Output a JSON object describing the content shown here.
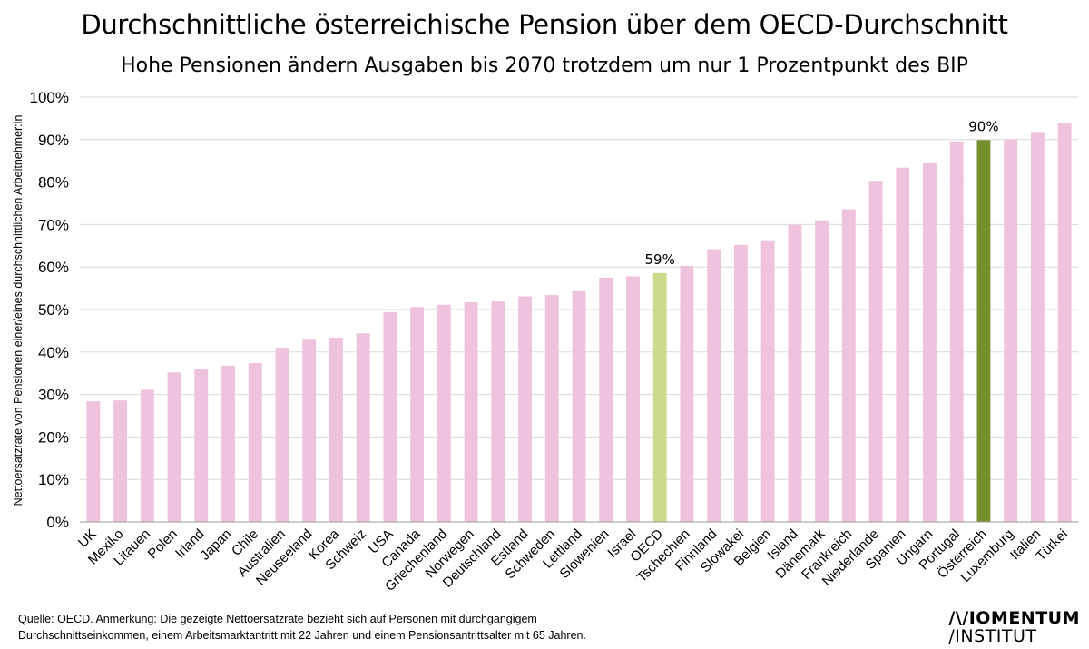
{
  "header": {
    "title": "Durchschnittliche österreichische Pension über dem OECD-Durchschnitt",
    "subtitle": "Hohe Pensionen ändern Ausgaben bis 2070 trotzdem um nur 1 Prozentpunkt des BIP"
  },
  "footer": {
    "source_line1": "Quelle: OECD. Anmerkung: Die gezeigte Nettoersatzrate bezieht sich auf Personen mit durchgängigem",
    "source_line2": "Durchschnittseinkommen, einem Arbeitsmarktantritt mit 22 Jahren und einem Pensionsantrittsalter mit 65 Jahren.",
    "logo_line1": "/\\/IOMENTUM",
    "logo_line2": "/INSTITUT"
  },
  "chart_data": {
    "type": "bar",
    "title": "Durchschnittliche österreichische Pension über dem OECD-Durchschnitt",
    "subtitle": "Hohe Pensionen ändern Ausgaben bis 2070 trotzdem um nur 1 Prozentpunkt des BIP",
    "ylabel": "Nettoersatzrate von Pensionen einer/eines durchschnittlichen Arbeitnehmer:in",
    "xlabel": "",
    "ylim": [
      0,
      100
    ],
    "yticks": [
      0,
      10,
      20,
      30,
      40,
      50,
      60,
      70,
      80,
      90,
      100
    ],
    "ytick_suffix": "%",
    "grid": true,
    "categories": [
      "UK",
      "Mexiko",
      "Litauen",
      "Polen",
      "Irland",
      "Japan",
      "Chile",
      "Australien",
      "Neuseeland",
      "Korea",
      "Schweiz",
      "USA",
      "Canada",
      "Griechenland",
      "Norwegen",
      "Deutschland",
      "Estland",
      "Schweden",
      "Lettland",
      "Slowenien",
      "Israel",
      "OECD",
      "Tschechien",
      "Finnland",
      "Slowakei",
      "Belgien",
      "Island",
      "Dänemark",
      "Frankreich",
      "Niederlande",
      "Spanien",
      "Ungarn",
      "Portugal",
      "Österreich",
      "Luxemburg",
      "Italien",
      "Türkei"
    ],
    "values": [
      28.4,
      28.6,
      31.1,
      35.2,
      35.9,
      36.8,
      37.4,
      41.0,
      42.9,
      43.4,
      44.4,
      49.4,
      50.6,
      51.1,
      51.7,
      51.9,
      53.1,
      53.4,
      54.3,
      57.5,
      57.8,
      58.6,
      60.3,
      64.2,
      65.2,
      66.3,
      69.9,
      71.0,
      73.6,
      80.3,
      83.4,
      84.4,
      89.6,
      89.9,
      90.1,
      91.8,
      93.8
    ],
    "data_labels": {
      "OECD": "59%",
      "Österreich": "90%"
    },
    "colors": {
      "default": "#efc3dd",
      "OECD": "#c9dc8e",
      "Österreich": "#76902d",
      "grid": "#d9d9d9",
      "axis": "#9a9a9a"
    }
  }
}
